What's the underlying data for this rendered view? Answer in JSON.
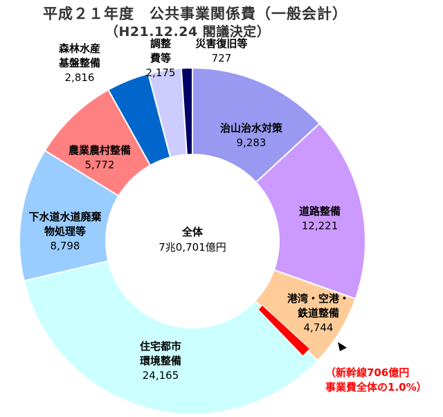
{
  "title": "平成２１年度　公共事業関係費（一般会計）",
  "subtitle": "（H21.12.24 閣議決定）",
  "center": {
    "line1": "全体",
    "line2": "7兆0,701億円"
  },
  "note": {
    "line1": "（新幹線706億円",
    "line2": "事業費全体の1.0%）"
  },
  "colors": {
    "chisan": "#9999f2",
    "doro": "#cc99ff",
    "kowan": "#ffcc99",
    "shinkansen": "#ff0000",
    "jutaku": "#ccffff",
    "gesuido": "#99ccff",
    "nogyo": "#ff8080",
    "shinrin": "#0066cc",
    "chosei": "#ccccff",
    "saigai": "#000066"
  },
  "chart_data": {
    "type": "pie",
    "title": "平成２１年度　公共事業関係費（一般会計）",
    "subtitle": "（H21.12.24 閣議決定）",
    "unit": "億円",
    "total": 70701,
    "slices": [
      {
        "key": "chisan",
        "label": [
          "治山治水対策"
        ],
        "value": 9283,
        "value_text": "9,283"
      },
      {
        "key": "doro",
        "label": [
          "道路整備"
        ],
        "value": 12221,
        "value_text": "12,221"
      },
      {
        "key": "kowan",
        "label": [
          "港湾・空港・",
          "鉄道整備"
        ],
        "value": 4744,
        "value_text": "4,744"
      },
      {
        "key": "jutaku",
        "label": [
          "住宅都市",
          "環境整備"
        ],
        "value": 24165,
        "value_text": "24,165"
      },
      {
        "key": "gesuido",
        "label": [
          "下水道水道廃棄",
          "物処理等"
        ],
        "value": 8798,
        "value_text": "8,798"
      },
      {
        "key": "nogyo",
        "label": [
          "農業農村整備"
        ],
        "value": 5772,
        "value_text": "5,772"
      },
      {
        "key": "shinrin",
        "label": [
          "森林水産",
          "基盤整備"
        ],
        "value": 2816,
        "value_text": "2,816"
      },
      {
        "key": "chosei",
        "label": [
          "調整",
          "費等"
        ],
        "value": 2175,
        "value_text": "2,175"
      },
      {
        "key": "saigai",
        "label": [
          "災害復旧等"
        ],
        "value": 727,
        "value_text": "727"
      }
    ],
    "highlight": {
      "label": "新幹線",
      "value": 706,
      "share_percent": 1.0,
      "within": "kowan"
    }
  }
}
